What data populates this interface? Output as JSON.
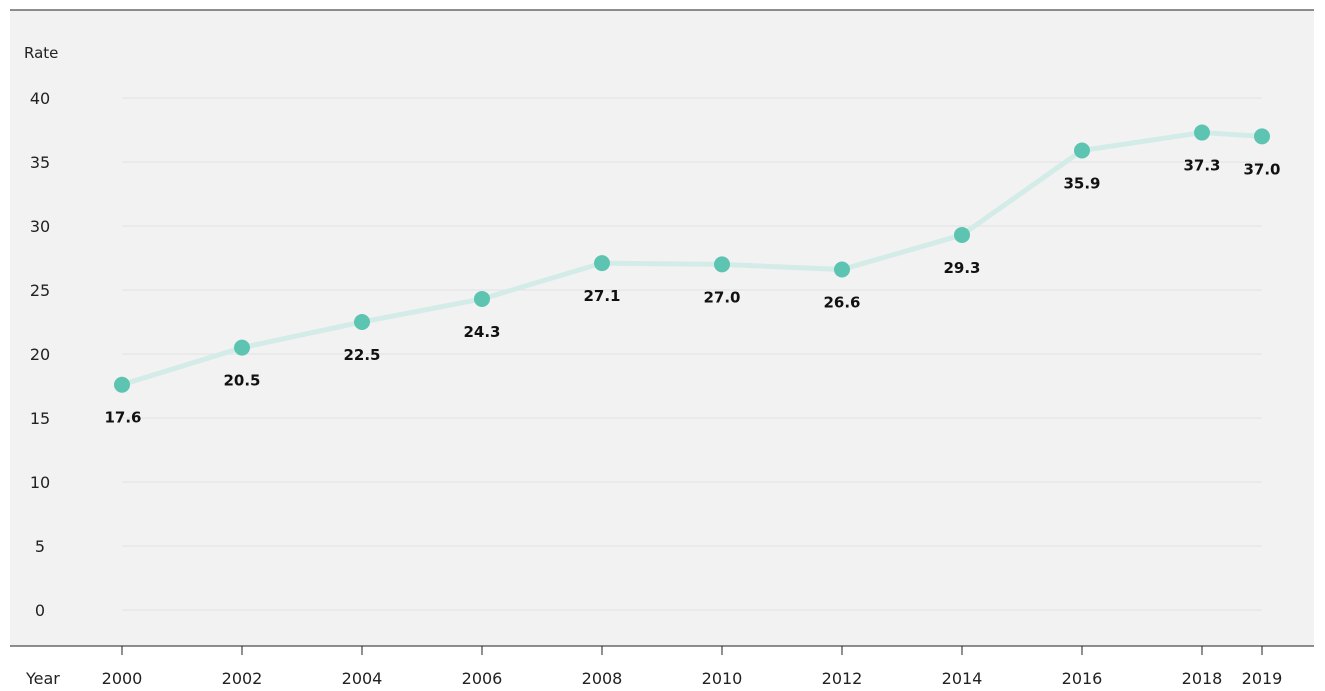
{
  "chart_data": {
    "type": "line",
    "title": "",
    "xlabel": "Year",
    "ylabel": "Rate",
    "x": [
      2000,
      2002,
      2004,
      2006,
      2008,
      2010,
      2012,
      2014,
      2016,
      2018,
      2019
    ],
    "x_tick_labels": [
      "2000",
      "2002",
      "2004",
      "2006",
      "2008",
      "2010",
      "2012",
      "2014",
      "2016",
      "2018",
      "2019"
    ],
    "y_ticks": [
      0,
      5,
      10,
      15,
      20,
      25,
      30,
      35,
      40
    ],
    "y_tick_labels": [
      "0",
      "5",
      "10",
      "15",
      "20",
      "25",
      "30",
      "35",
      "40"
    ],
    "ylim": [
      0,
      40
    ],
    "grid": true,
    "series": [
      {
        "values": [
          17.6,
          20.5,
          22.5,
          24.3,
          27.1,
          27.0,
          26.6,
          29.3,
          35.9,
          37.3,
          37.0
        ],
        "data_labels": [
          "17.6",
          "20.5",
          "22.5",
          "24.3",
          "27.1",
          "27.0",
          "26.6",
          "29.3",
          "35.9",
          "37.3",
          "37.0"
        ],
        "color": "#5ec4b2",
        "line_color": "#d3ece7"
      }
    ],
    "colors": {
      "plot_background": "#f2f2f2",
      "gridline": "#e2e2e2",
      "axis_line": "#222222"
    }
  }
}
